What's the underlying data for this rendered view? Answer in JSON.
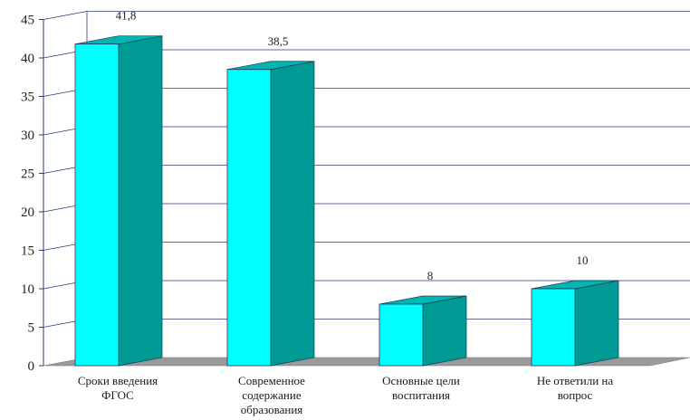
{
  "chart_data": {
    "type": "bar",
    "categories": [
      [
        "Сроки введения",
        "ФГОС"
      ],
      [
        "Современное",
        "содержание",
        "образования"
      ],
      [
        "Основные цели",
        "воспитания"
      ],
      [
        "Не ответили на",
        "вопрос"
      ]
    ],
    "values": [
      41.8,
      38.5,
      8,
      10
    ],
    "value_labels": [
      "41,8",
      "38,5",
      "8",
      "10"
    ],
    "title": "",
    "xlabel": "",
    "ylabel": "",
    "ylim": [
      0,
      45
    ],
    "yticks": [
      0,
      5,
      10,
      15,
      20,
      25,
      30,
      35,
      40,
      45
    ],
    "grid": true,
    "legend": "none",
    "style": "3d-column"
  },
  "colors": {
    "bar_front": "#00ffff",
    "bar_side": "#009a95",
    "bar_top": "#00b6b0",
    "bar_edge": "#1e3a5a",
    "grid": "#2b3a7a",
    "floor": "#9a9a9a",
    "axis": "#2b3a7a"
  }
}
